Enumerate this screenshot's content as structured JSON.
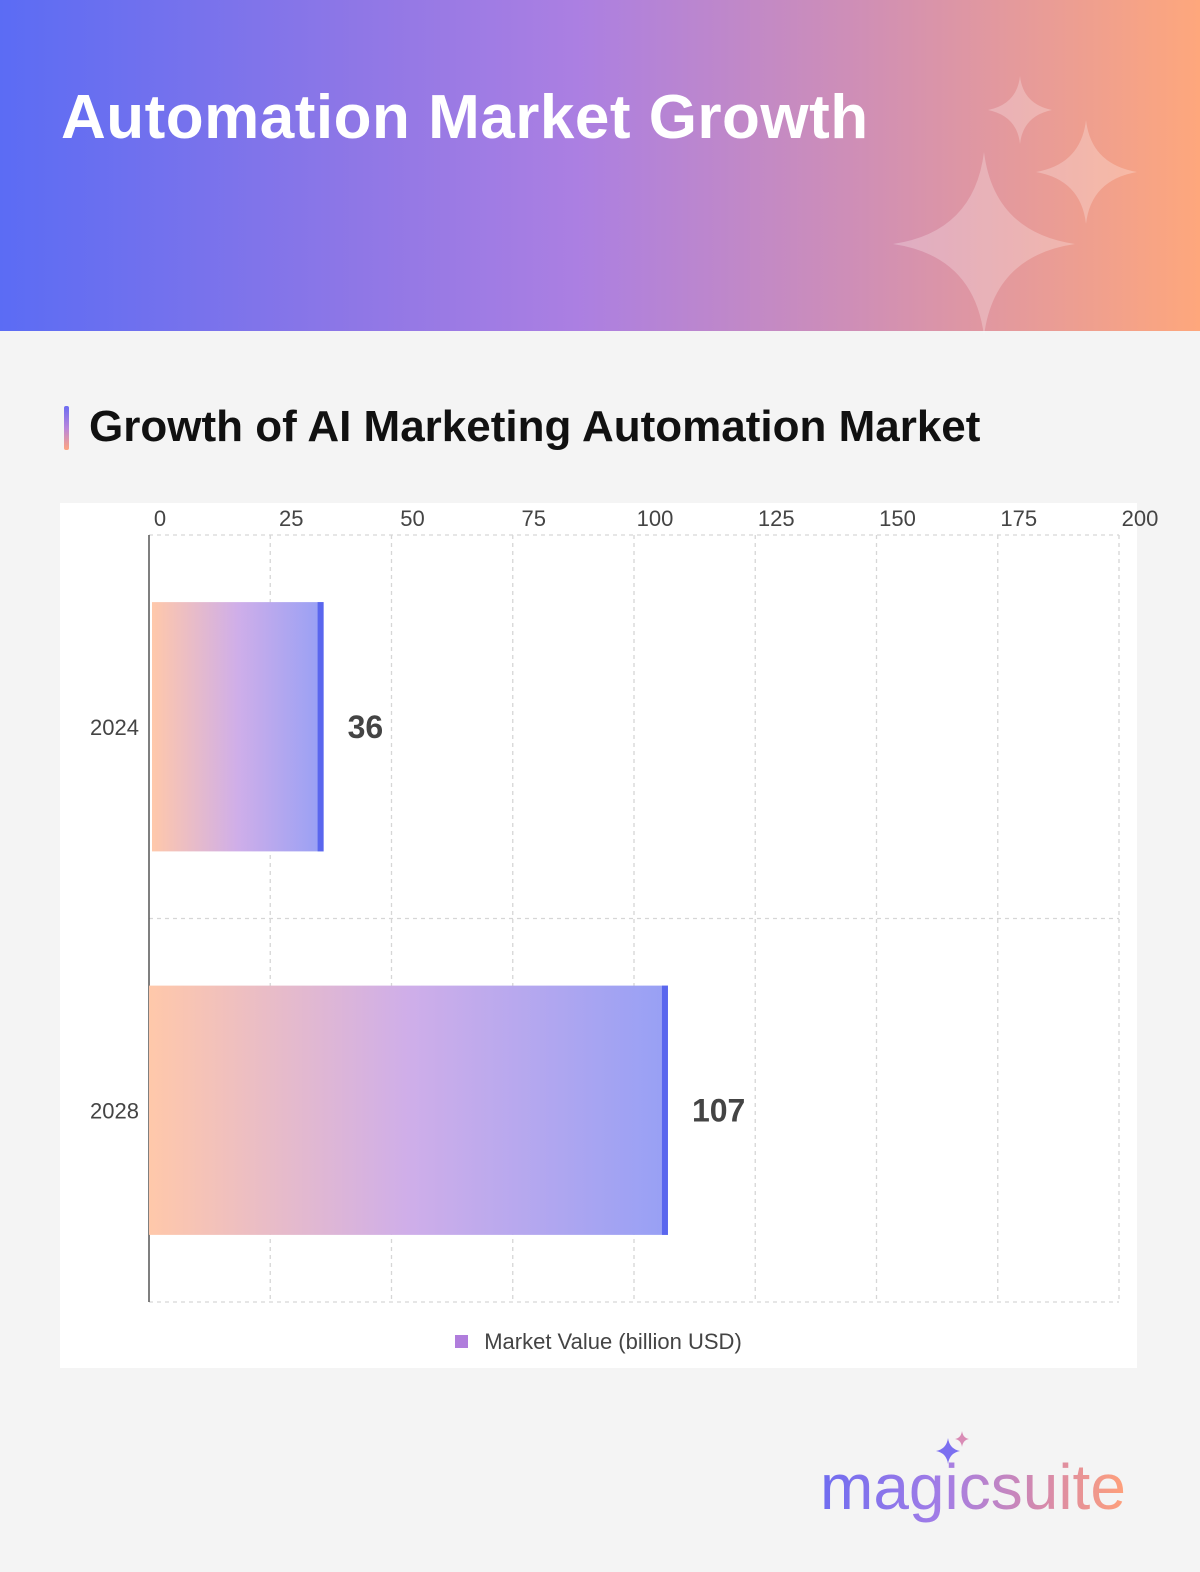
{
  "header": {
    "title": "Automation Market Growth"
  },
  "section": {
    "title": "Growth of AI Marketing Automation Market"
  },
  "chart_data": {
    "type": "bar",
    "orientation": "horizontal",
    "categories": [
      "2024",
      "2028"
    ],
    "series": [
      {
        "name": "Market Value (billion USD)",
        "values": [
          36,
          107
        ]
      }
    ],
    "xlim": [
      0,
      200
    ],
    "xticks": [
      "0",
      "25",
      "50",
      "75",
      "100",
      "125",
      "150",
      "175",
      "200"
    ],
    "data_labels": [
      "36",
      "107"
    ],
    "grid": true,
    "xaxis_position": "top",
    "legend_position": "bottom",
    "colors": {
      "bar_start": "#ffc8aa",
      "bar_mid": "#cfaee9",
      "bar_end": "#97a0f5",
      "bar_edge": "#5a66ee",
      "legend": "#b07ddc"
    }
  },
  "logo": {
    "text": "magicsuite"
  }
}
